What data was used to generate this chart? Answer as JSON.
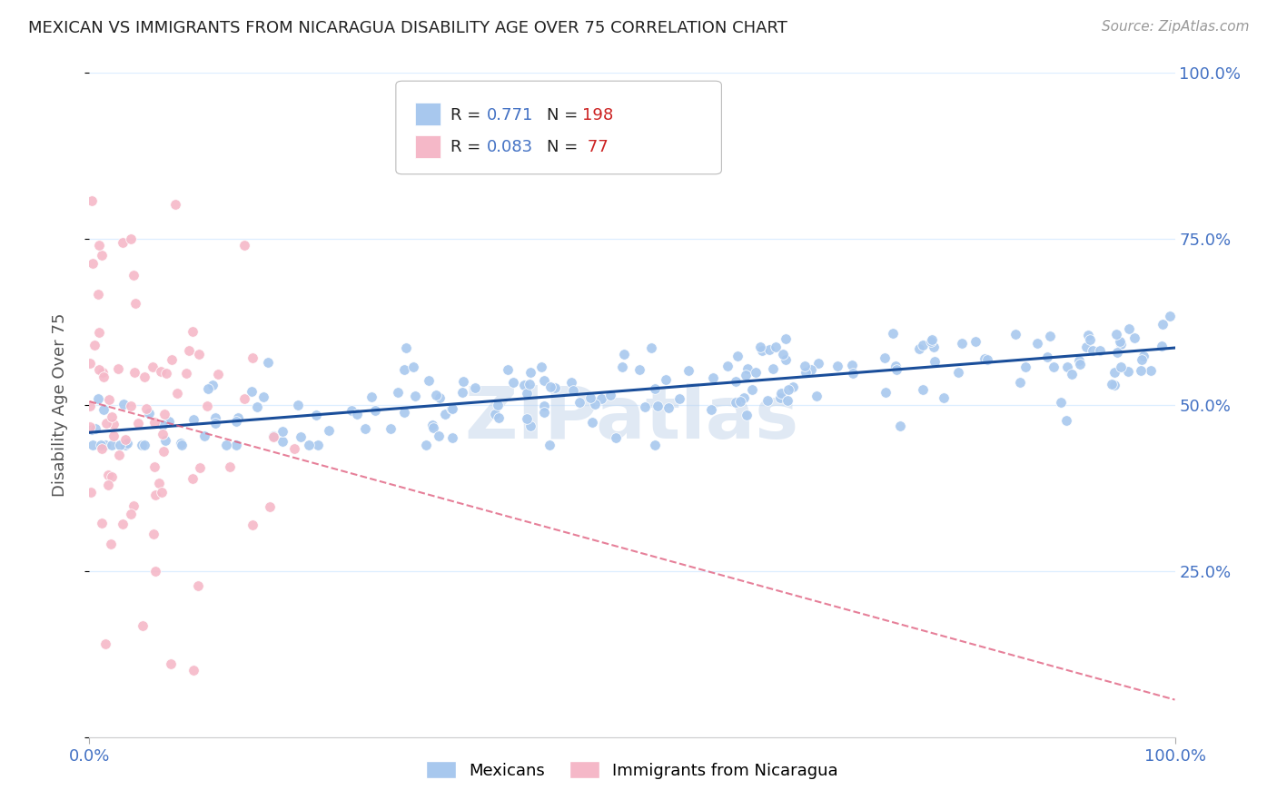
{
  "title": "MEXICAN VS IMMIGRANTS FROM NICARAGUA DISABILITY AGE OVER 75 CORRELATION CHART",
  "source": "Source: ZipAtlas.com",
  "ylabel": "Disability Age Over 75",
  "legend_mexicans": "Mexicans",
  "legend_nicaragua": "Immigrants from Nicaragua",
  "mexican_R": 0.771,
  "mexican_N": 198,
  "nicaragua_R": 0.083,
  "nicaragua_N": 77,
  "mexican_color": "#A8C8EE",
  "nicaragua_color": "#F5B8C8",
  "mexican_line_color": "#1A4E9A",
  "nicaragua_line_color": "#E06080",
  "watermark": "ZIPatlas",
  "bg_color": "#FFFFFF",
  "grid_color": "#DDEEFF",
  "title_color": "#222222",
  "axis_label_color": "#4472C4",
  "seed_mexican": 12,
  "seed_nicaragua": 55
}
